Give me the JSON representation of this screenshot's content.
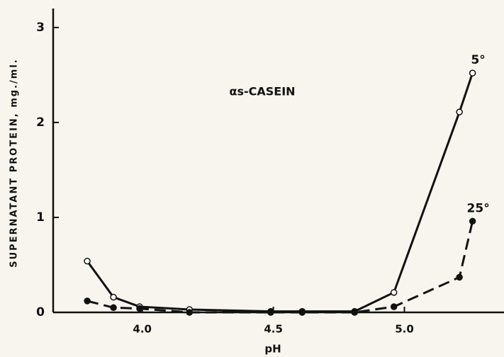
{
  "chart_data": {
    "type": "line",
    "annotation": "αs-CASEIN",
    "x_label": "pH",
    "y_label": "SUPERNATANT PROTEIN, mg./ml.",
    "x": [
      3.79,
      3.89,
      3.99,
      4.18,
      4.49,
      4.61,
      4.81,
      4.96,
      5.21,
      5.26
    ],
    "series": [
      {
        "name": "5°",
        "color": "#111111",
        "line_style": "solid",
        "marker_fill": "open",
        "values": [
          0.54,
          0.16,
          0.06,
          0.03,
          0.01,
          0.01,
          0.01,
          0.21,
          2.11,
          2.52
        ]
      },
      {
        "name": "25°",
        "color": "#111111",
        "line_style": "dashed",
        "marker_fill": "filled",
        "values": [
          0.12,
          0.05,
          0.04,
          0,
          0,
          0,
          0,
          0.06,
          0.37,
          0.96
        ]
      }
    ],
    "xlim": [
      3.66,
      5.38
    ],
    "ylim": [
      0,
      3.2
    ],
    "xticks": [
      {
        "value": 4,
        "label": "4.0"
      },
      4.5,
      {
        "value": 5,
        "label": "5.0"
      }
    ],
    "yticks": [
      0,
      1,
      2,
      3
    ],
    "grid": false
  }
}
